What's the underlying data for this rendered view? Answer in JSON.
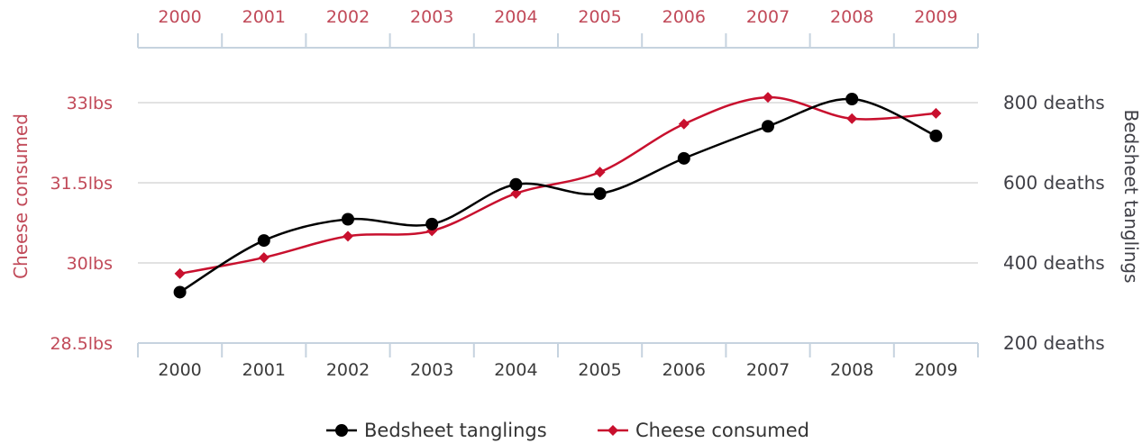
{
  "chart_data": {
    "type": "line",
    "title": "",
    "x": [
      "2000",
      "2001",
      "2002",
      "2003",
      "2004",
      "2005",
      "2006",
      "2007",
      "2008",
      "2009"
    ],
    "series": [
      {
        "name": "Bedsheet tanglings",
        "axis": "right",
        "color": "#000000",
        "marker": "circle",
        "values": [
          327,
          456,
          509,
          497,
          596,
          573,
          661,
          741,
          809,
          717
        ]
      },
      {
        "name": "Cheese consumed",
        "axis": "left",
        "color": "#c8102e",
        "marker": "diamond",
        "values": [
          29.8,
          30.1,
          30.5,
          30.6,
          31.3,
          31.7,
          32.6,
          33.1,
          32.7,
          32.8
        ]
      }
    ],
    "left_axis": {
      "label": "Cheese consumed",
      "ylim": [
        28.5,
        33.0
      ],
      "ticks": [
        28.5,
        30,
        31.5,
        33
      ],
      "tick_labels": [
        "28.5lbs",
        "30lbs",
        "31.5lbs",
        "33lbs"
      ]
    },
    "right_axis": {
      "label": "Bedsheet tanglings",
      "ylim": [
        200,
        800
      ],
      "ticks": [
        200,
        400,
        600,
        800
      ],
      "tick_labels": [
        "200 deaths",
        "400 deaths",
        "600 deaths",
        "800 deaths"
      ]
    },
    "top_axis_labels": [
      "2000",
      "2001",
      "2002",
      "2003",
      "2004",
      "2005",
      "2006",
      "2007",
      "2008",
      "2009"
    ],
    "bottom_axis_labels": [
      "2000",
      "2001",
      "2002",
      "2003",
      "2004",
      "2005",
      "2006",
      "2007",
      "2008",
      "2009"
    ],
    "grid": true,
    "legend_position": "bottom-center",
    "colors": {
      "axis_red": "#c14a59",
      "axis_dark": "#3f3f46",
      "grid": "#d8d8d8",
      "axis_line": "#c6d3df"
    }
  }
}
